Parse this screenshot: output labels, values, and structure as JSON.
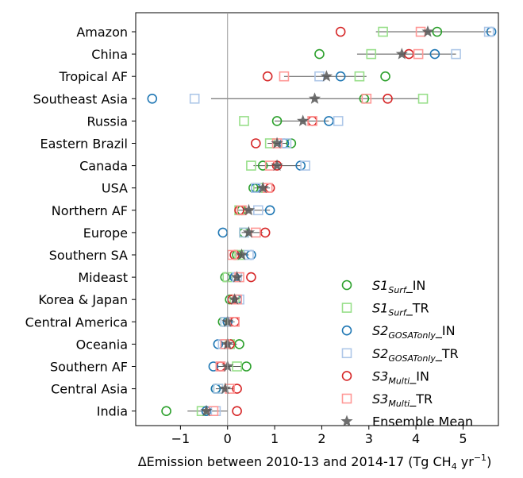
{
  "chart_data": {
    "type": "scatter",
    "title": "",
    "xlabel": "ΔEmission between 2010-13 and 2014-17 (Tg CH",
    "xlabel_sub": "4",
    "xlabel_tail": " yr",
    "xlabel_sup": "−1",
    "xlabel_end": ")",
    "ylabel": "",
    "xlim": [
      -1.95,
      5.75
    ],
    "xticks": [
      -1,
      0,
      1,
      2,
      3,
      4,
      5
    ],
    "xtick_labels": [
      "−1",
      "0",
      "1",
      "2",
      "3",
      "4",
      "5"
    ],
    "zero_line": 0,
    "grid": false,
    "legend_position": "lower-right",
    "categories": [
      "Amazon",
      "China",
      "Tropical AF",
      "Southeast Asia",
      "Russia",
      "Eastern Brazil",
      "Canada",
      "USA",
      "Northern AF",
      "Europe",
      "Southern SA",
      "Mideast",
      "Korea & Japan",
      "Central America",
      "Oceania",
      "Southern AF",
      "Central Asia",
      "India"
    ],
    "series": [
      {
        "key": "s1_in",
        "name_main": "S1",
        "name_sub": "Surf",
        "name_tail": "_IN",
        "marker": "circle",
        "color": "#2ca02c",
        "values": [
          4.45,
          1.95,
          3.35,
          2.9,
          1.05,
          1.35,
          0.75,
          0.55,
          0.3,
          0.35,
          0.2,
          -0.05,
          0.05,
          -0.1,
          0.25,
          0.4,
          -0.25,
          -1.3
        ]
      },
      {
        "key": "s1_tr",
        "name_main": "S1",
        "name_sub": "Surf",
        "name_tail": "_TR",
        "marker": "square",
        "color": "#98df8a",
        "values": [
          3.3,
          3.05,
          2.8,
          4.15,
          0.35,
          0.9,
          0.5,
          0.65,
          0.25,
          0.35,
          0.25,
          0.0,
          0.15,
          -0.05,
          0.05,
          0.2,
          -0.2,
          -0.55
        ]
      },
      {
        "key": "s2_in",
        "name_main": "S2",
        "name_sub": "GOSATonly",
        "name_tail": "_IN",
        "marker": "circle",
        "color": "#1f77b4",
        "values": [
          5.6,
          4.4,
          2.4,
          -1.6,
          2.15,
          1.2,
          1.55,
          0.6,
          0.9,
          -0.1,
          0.5,
          0.15,
          0.2,
          0.0,
          -0.2,
          -0.3,
          -0.25,
          -0.45
        ]
      },
      {
        "key": "s2_tr",
        "name_main": "S2",
        "name_sub": "GOSATonly",
        "name_tail": "_TR",
        "marker": "square",
        "color": "#aec7e8",
        "values": [
          5.55,
          4.85,
          1.95,
          -0.7,
          2.35,
          1.25,
          1.65,
          0.6,
          0.65,
          0.35,
          0.45,
          0.2,
          0.25,
          -0.05,
          -0.1,
          -0.15,
          -0.2,
          -0.25
        ]
      },
      {
        "key": "s3_in",
        "name_main": "S3",
        "name_sub": "Multi",
        "name_tail": "_IN",
        "marker": "circle",
        "color": "#d62728",
        "values": [
          2.4,
          3.85,
          0.85,
          3.4,
          1.8,
          0.6,
          1.05,
          0.9,
          0.25,
          0.8,
          0.15,
          0.5,
          0.1,
          0.15,
          0.05,
          -0.15,
          0.2,
          0.2
        ]
      },
      {
        "key": "s3_tr",
        "name_main": "S3",
        "name_sub": "Multi",
        "name_tail": "_TR",
        "marker": "square",
        "color": "#ff9896",
        "values": [
          4.1,
          4.05,
          1.2,
          2.95,
          1.8,
          1.05,
          0.9,
          0.85,
          0.3,
          0.6,
          0.1,
          0.25,
          0.2,
          0.15,
          -0.05,
          -0.15,
          0.05,
          -0.3
        ]
      },
      {
        "key": "mean",
        "name_main": "Ensemble Mean",
        "name_sub": "",
        "name_tail": "",
        "marker": "star",
        "color": "#555555",
        "values": [
          4.25,
          3.7,
          2.1,
          1.85,
          1.6,
          1.05,
          1.05,
          0.75,
          0.45,
          0.45,
          0.3,
          0.2,
          0.15,
          0.0,
          0.0,
          0.0,
          -0.05,
          -0.45
        ]
      }
    ],
    "ranges": [
      [
        3.15,
        5.6
      ],
      [
        2.75,
        4.85
      ],
      [
        1.2,
        2.95
      ],
      [
        -0.35,
        4.05
      ],
      [
        1.0,
        2.15
      ],
      [
        0.85,
        1.25
      ],
      [
        0.55,
        1.55
      ],
      [
        0.55,
        0.9
      ],
      [
        0.2,
        0.9
      ],
      [
        0.3,
        0.75
      ],
      [
        0.15,
        0.45
      ],
      [
        0.05,
        0.3
      ],
      [
        0.05,
        0.2
      ],
      [
        -0.1,
        0.15
      ],
      [
        -0.15,
        0.2
      ],
      [
        -0.25,
        0.3
      ],
      [
        -0.25,
        0.15
      ],
      [
        -0.85,
        0.0
      ]
    ]
  }
}
